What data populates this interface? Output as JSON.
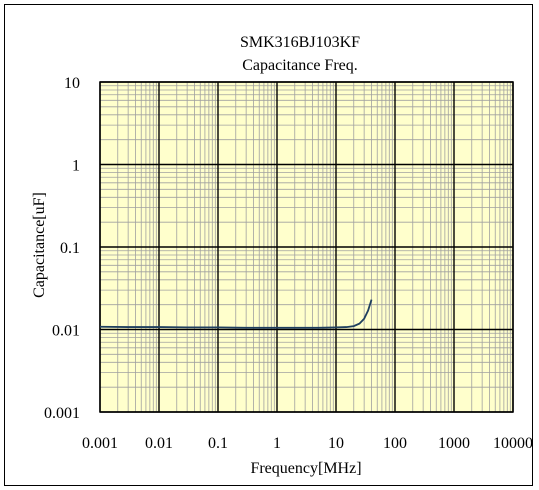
{
  "chart_data": {
    "type": "line",
    "title": "SMK316BJ103KF",
    "subtitle": "Capacitance Freq.",
    "xlabel": "Frequency[MHz]",
    "ylabel": "Capacitance[uF]",
    "x_scale": "log",
    "y_scale": "log",
    "xlim": [
      0.001,
      10000
    ],
    "ylim": [
      0.001,
      10
    ],
    "x_ticks": [
      {
        "value": 0.001,
        "label": "0.001"
      },
      {
        "value": 0.01,
        "label": "0.01"
      },
      {
        "value": 0.1,
        "label": "0.1"
      },
      {
        "value": 1,
        "label": "1"
      },
      {
        "value": 10,
        "label": "10"
      },
      {
        "value": 100,
        "label": "100"
      },
      {
        "value": 1000,
        "label": "1000"
      },
      {
        "value": 10000,
        "label": "10000"
      }
    ],
    "y_ticks": [
      {
        "value": 0.001,
        "label": "0.001"
      },
      {
        "value": 0.01,
        "label": "0.01"
      },
      {
        "value": 0.1,
        "label": "0.1"
      },
      {
        "value": 1,
        "label": "1"
      },
      {
        "value": 10,
        "label": "10"
      }
    ],
    "grid": true,
    "minor_grid": true,
    "legend": "none",
    "plot_background": "#ffffcc",
    "grid_color": "#000000",
    "minor_grid_color": "#a0a0a0",
    "series": [
      {
        "color": "#1f3f5f",
        "x": [
          0.001,
          0.003,
          0.01,
          0.03,
          0.1,
          0.3,
          1,
          3,
          5,
          10,
          15,
          20,
          25,
          30,
          35,
          40
        ],
        "y": [
          0.0108,
          0.0107,
          0.0107,
          0.0106,
          0.0106,
          0.0105,
          0.0105,
          0.0105,
          0.0105,
          0.0106,
          0.0107,
          0.011,
          0.0118,
          0.0135,
          0.017,
          0.023
        ]
      }
    ]
  }
}
